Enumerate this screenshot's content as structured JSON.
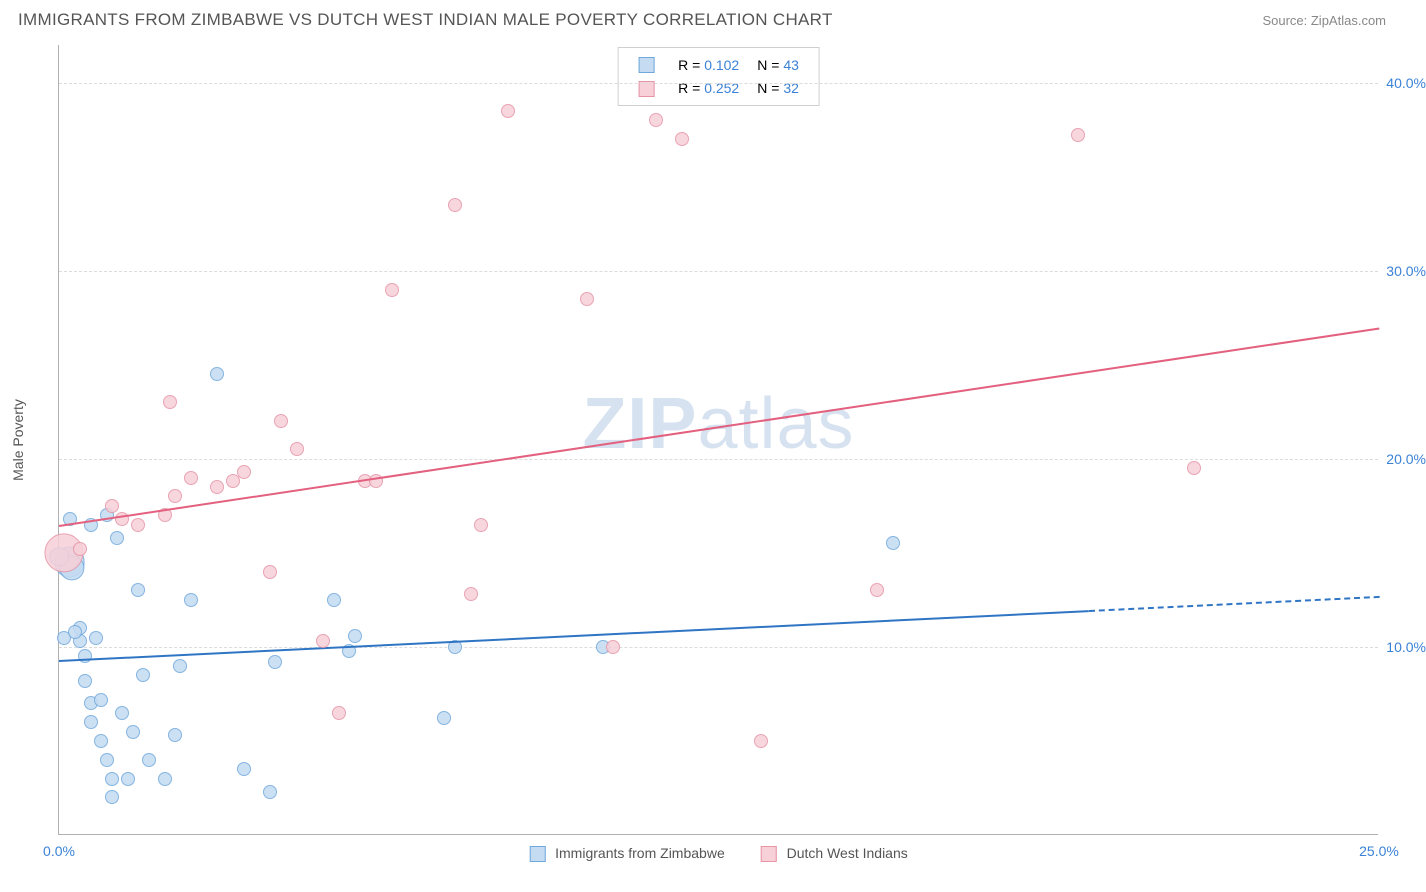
{
  "header": {
    "title": "IMMIGRANTS FROM ZIMBABWE VS DUTCH WEST INDIAN MALE POVERTY CORRELATION CHART",
    "source": "Source: ZipAtlas.com"
  },
  "watermark": {
    "part1": "ZIP",
    "part2": "atlas"
  },
  "chart": {
    "type": "scatter",
    "background_color": "#ffffff",
    "grid_color": "#dcdcdc",
    "axis_color": "#b0b0b0",
    "tick_label_color": "#3b82d6",
    "axis_label_color": "#555555",
    "y_label": "Male Poverty",
    "xlim": [
      0,
      25
    ],
    "ylim": [
      0,
      42
    ],
    "x_ticks": [
      {
        "v": 0,
        "label": "0.0%"
      },
      {
        "v": 25,
        "label": "25.0%"
      }
    ],
    "y_ticks": [
      {
        "v": 10,
        "label": "10.0%"
      },
      {
        "v": 20,
        "label": "20.0%"
      },
      {
        "v": 30,
        "label": "30.0%"
      },
      {
        "v": 40,
        "label": "40.0%"
      }
    ],
    "series": [
      {
        "name": "Immigrants from Zimbabwe",
        "fill": "#c4dbf2",
        "stroke": "#6fa8dc",
        "line_color": "#2f75c4",
        "r_value": "0.102",
        "n_value": "43",
        "trend": {
          "x1": 0,
          "y1": 9.3,
          "x2": 25,
          "y2": 12.7,
          "dash_after_x": 19.5
        },
        "points": [
          {
            "x": 0.1,
            "y": 10.5,
            "s": 10
          },
          {
            "x": 0.2,
            "y": 16.8,
            "s": 10
          },
          {
            "x": 0.3,
            "y": 15.0,
            "s": 10
          },
          {
            "x": 0.4,
            "y": 11.0,
            "s": 10
          },
          {
            "x": 0.4,
            "y": 10.3,
            "s": 10
          },
          {
            "x": 0.5,
            "y": 9.5,
            "s": 10
          },
          {
            "x": 0.5,
            "y": 8.2,
            "s": 10
          },
          {
            "x": 0.6,
            "y": 7.0,
            "s": 10
          },
          {
            "x": 0.6,
            "y": 6.0,
            "s": 10
          },
          {
            "x": 0.7,
            "y": 10.5,
            "s": 10
          },
          {
            "x": 0.8,
            "y": 7.2,
            "s": 10
          },
          {
            "x": 0.8,
            "y": 5.0,
            "s": 10
          },
          {
            "x": 0.9,
            "y": 4.0,
            "s": 10
          },
          {
            "x": 0.9,
            "y": 17.0,
            "s": 10
          },
          {
            "x": 1.0,
            "y": 3.0,
            "s": 10
          },
          {
            "x": 1.0,
            "y": 2.0,
            "s": 10
          },
          {
            "x": 1.1,
            "y": 15.8,
            "s": 10
          },
          {
            "x": 1.2,
            "y": 6.5,
            "s": 10
          },
          {
            "x": 1.3,
            "y": 3.0,
            "s": 10
          },
          {
            "x": 1.4,
            "y": 5.5,
            "s": 10
          },
          {
            "x": 1.5,
            "y": 13.0,
            "s": 10
          },
          {
            "x": 1.6,
            "y": 8.5,
            "s": 10
          },
          {
            "x": 1.7,
            "y": 4.0,
            "s": 10
          },
          {
            "x": 2.0,
            "y": 3.0,
            "s": 10
          },
          {
            "x": 2.2,
            "y": 5.3,
            "s": 10
          },
          {
            "x": 2.3,
            "y": 9.0,
            "s": 10
          },
          {
            "x": 2.5,
            "y": 12.5,
            "s": 10
          },
          {
            "x": 3.0,
            "y": 24.5,
            "s": 10
          },
          {
            "x": 3.5,
            "y": 3.5,
            "s": 10
          },
          {
            "x": 4.0,
            "y": 2.3,
            "s": 10
          },
          {
            "x": 4.1,
            "y": 9.2,
            "s": 10
          },
          {
            "x": 5.2,
            "y": 12.5,
            "s": 10
          },
          {
            "x": 5.5,
            "y": 9.8,
            "s": 10
          },
          {
            "x": 5.6,
            "y": 10.6,
            "s": 10
          },
          {
            "x": 7.3,
            "y": 6.2,
            "s": 10
          },
          {
            "x": 7.5,
            "y": 10.0,
            "s": 10
          },
          {
            "x": 10.3,
            "y": 10.0,
            "s": 10
          },
          {
            "x": 15.8,
            "y": 15.5,
            "s": 10
          },
          {
            "x": 0.2,
            "y": 14.5,
            "s": 22
          },
          {
            "x": 0.25,
            "y": 14.2,
            "s": 18
          },
          {
            "x": 0.0,
            "y": 14.8,
            "s": 14
          },
          {
            "x": 0.6,
            "y": 16.5,
            "s": 10
          },
          {
            "x": 0.3,
            "y": 10.8,
            "s": 10
          }
        ]
      },
      {
        "name": "Dutch West Indians",
        "fill": "#f7d0d8",
        "stroke": "#e694a6",
        "line_color": "#e3607f",
        "r_value": "0.252",
        "n_value": "32",
        "trend": {
          "x1": 0,
          "y1": 16.5,
          "x2": 25,
          "y2": 27.0,
          "dash_after_x": 25
        },
        "points": [
          {
            "x": 0.1,
            "y": 15.0,
            "s": 28
          },
          {
            "x": 0.4,
            "y": 15.2,
            "s": 10
          },
          {
            "x": 1.0,
            "y": 17.5,
            "s": 10
          },
          {
            "x": 1.2,
            "y": 16.8,
            "s": 10
          },
          {
            "x": 1.5,
            "y": 16.5,
            "s": 10
          },
          {
            "x": 2.0,
            "y": 17.0,
            "s": 10
          },
          {
            "x": 2.1,
            "y": 23.0,
            "s": 10
          },
          {
            "x": 2.2,
            "y": 18.0,
            "s": 10
          },
          {
            "x": 2.5,
            "y": 19.0,
            "s": 10
          },
          {
            "x": 3.0,
            "y": 18.5,
            "s": 10
          },
          {
            "x": 3.3,
            "y": 18.8,
            "s": 10
          },
          {
            "x": 3.5,
            "y": 19.3,
            "s": 10
          },
          {
            "x": 4.0,
            "y": 14.0,
            "s": 10
          },
          {
            "x": 4.2,
            "y": 22.0,
            "s": 10
          },
          {
            "x": 4.5,
            "y": 20.5,
            "s": 10
          },
          {
            "x": 5.0,
            "y": 10.3,
            "s": 10
          },
          {
            "x": 5.3,
            "y": 6.5,
            "s": 10
          },
          {
            "x": 5.8,
            "y": 18.8,
            "s": 10
          },
          {
            "x": 6.0,
            "y": 18.8,
            "s": 10
          },
          {
            "x": 6.3,
            "y": 29.0,
            "s": 10
          },
          {
            "x": 7.5,
            "y": 33.5,
            "s": 10
          },
          {
            "x": 7.8,
            "y": 12.8,
            "s": 10
          },
          {
            "x": 8.0,
            "y": 16.5,
            "s": 10
          },
          {
            "x": 8.5,
            "y": 38.5,
            "s": 10
          },
          {
            "x": 10.0,
            "y": 28.5,
            "s": 10
          },
          {
            "x": 10.5,
            "y": 10.0,
            "s": 10
          },
          {
            "x": 11.3,
            "y": 38.0,
            "s": 10
          },
          {
            "x": 11.8,
            "y": 37.0,
            "s": 10
          },
          {
            "x": 13.3,
            "y": 5.0,
            "s": 10
          },
          {
            "x": 15.5,
            "y": 13.0,
            "s": 10
          },
          {
            "x": 19.3,
            "y": 37.2,
            "s": 10
          },
          {
            "x": 21.5,
            "y": 19.5,
            "s": 10
          }
        ]
      }
    ],
    "legend_top": {
      "r_label": "R =",
      "n_label": "N ="
    },
    "legend_bottom_labels": [
      "Immigrants from Zimbabwe",
      "Dutch West Indians"
    ]
  }
}
